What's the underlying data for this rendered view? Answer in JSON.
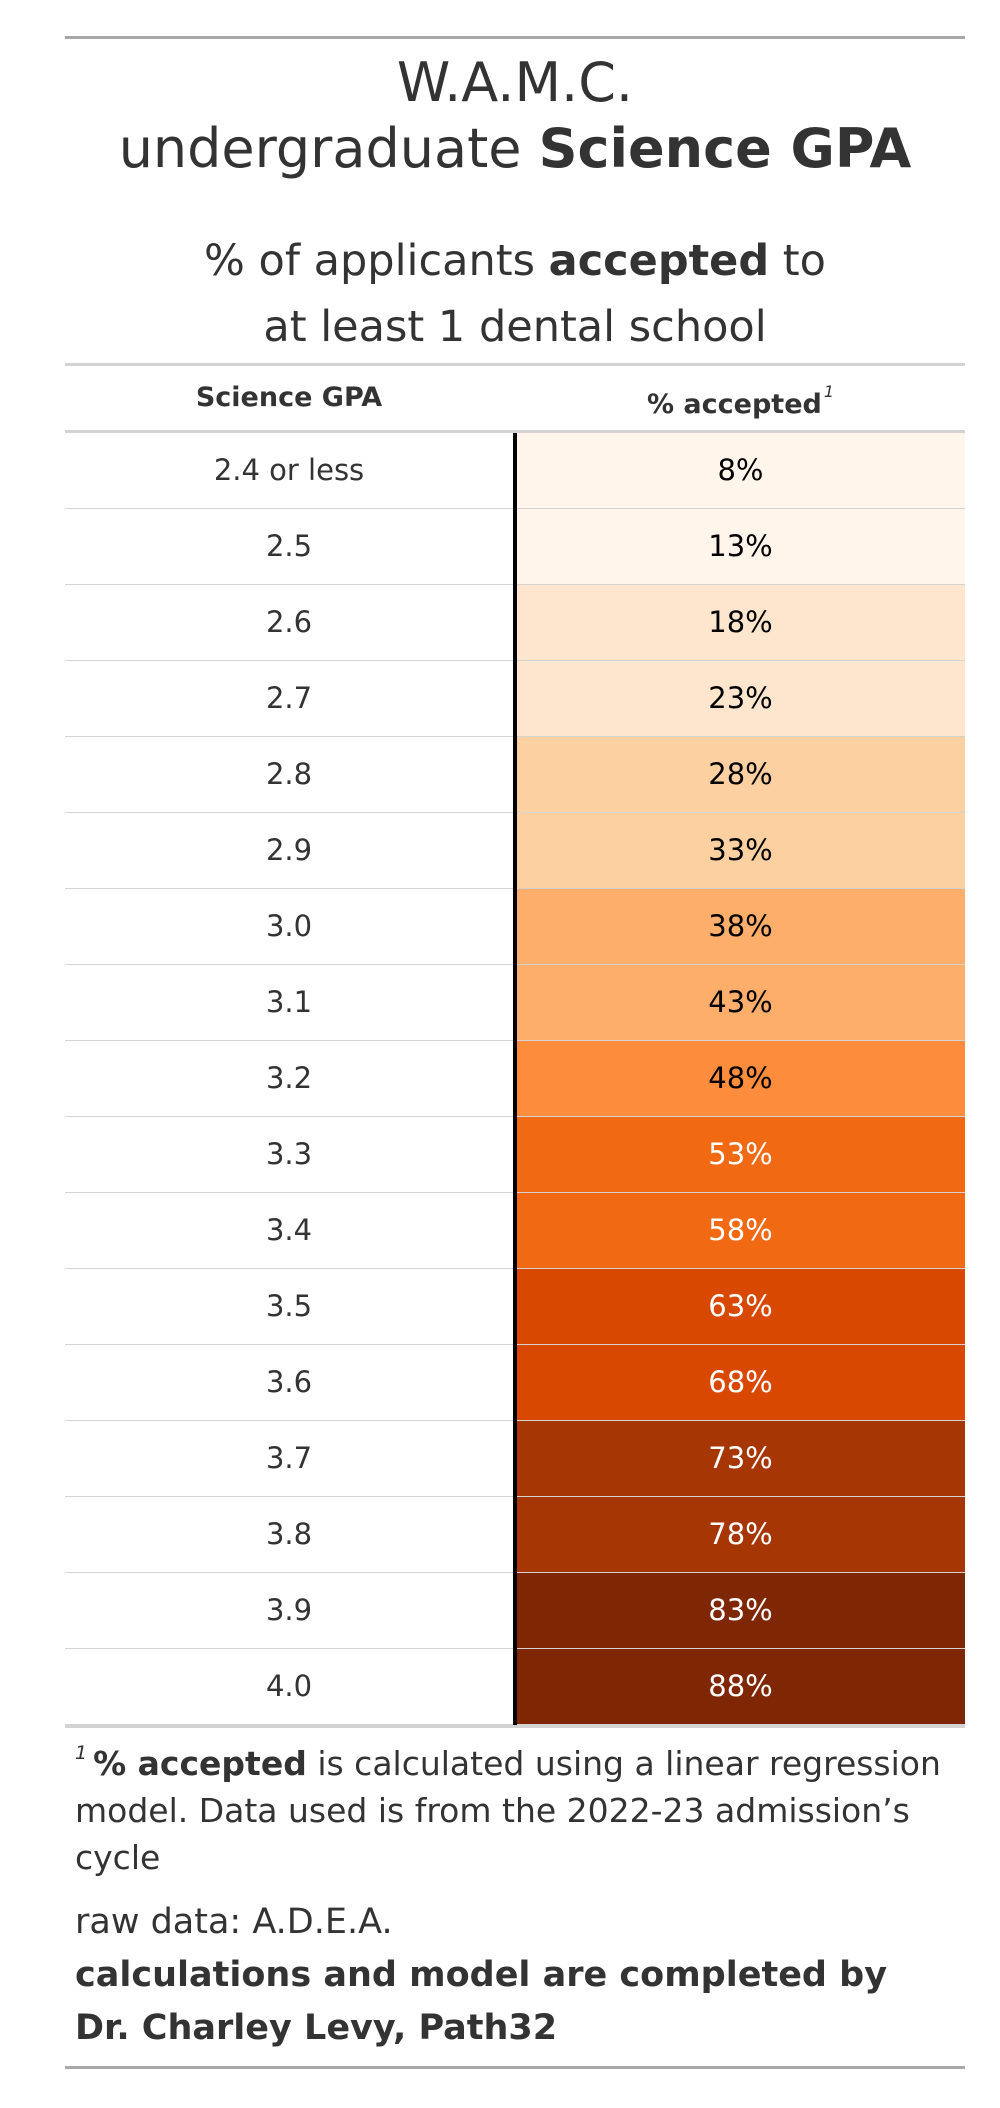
{
  "header": {
    "title_line1": "W.A.M.C.",
    "title_line2_plain": "undergraduate ",
    "title_line2_bold": "Science GPA",
    "subtitle_line1_plain": "% of applicants ",
    "subtitle_line1_bold": "accepted",
    "subtitle_line1_tail": " to",
    "subtitle_line2": "at least 1 dental school"
  },
  "columns": {
    "gpa": "Science GPA",
    "accepted": "% accepted",
    "accepted_footnote_mark": "1"
  },
  "colors": {
    "text_dark": "#000000",
    "text_light": "#ffffff",
    "scale": [
      "#fff5eb",
      "#fee6ce",
      "#fdd0a2",
      "#fdae6b",
      "#fd8d3c",
      "#f16913",
      "#d94801",
      "#a63603",
      "#7f2704"
    ]
  },
  "chart_data": {
    "type": "table",
    "columns": [
      "Science GPA",
      "% accepted"
    ],
    "rows": [
      {
        "gpa": "2.4 or less",
        "accepted": "8%",
        "value": 8
      },
      {
        "gpa": "2.5",
        "accepted": "13%",
        "value": 13
      },
      {
        "gpa": "2.6",
        "accepted": "18%",
        "value": 18
      },
      {
        "gpa": "2.7",
        "accepted": "23%",
        "value": 23
      },
      {
        "gpa": "2.8",
        "accepted": "28%",
        "value": 28
      },
      {
        "gpa": "2.9",
        "accepted": "33%",
        "value": 33
      },
      {
        "gpa": "3.0",
        "accepted": "38%",
        "value": 38
      },
      {
        "gpa": "3.1",
        "accepted": "43%",
        "value": 43
      },
      {
        "gpa": "3.2",
        "accepted": "48%",
        "value": 48
      },
      {
        "gpa": "3.3",
        "accepted": "53%",
        "value": 53
      },
      {
        "gpa": "3.4",
        "accepted": "58%",
        "value": 58
      },
      {
        "gpa": "3.5",
        "accepted": "63%",
        "value": 63
      },
      {
        "gpa": "3.6",
        "accepted": "68%",
        "value": 68
      },
      {
        "gpa": "3.7",
        "accepted": "73%",
        "value": 73
      },
      {
        "gpa": "3.8",
        "accepted": "78%",
        "value": 78
      },
      {
        "gpa": "3.9",
        "accepted": "83%",
        "value": 83
      },
      {
        "gpa": "4.0",
        "accepted": "88%",
        "value": 88
      }
    ]
  },
  "footnote": {
    "mark": "1",
    "bold": "% accepted",
    "text": " is calculated using a linear regression model. Data used is from the 2022-23 admission’s cycle"
  },
  "source": {
    "raw": "raw data: A.D.E.A.",
    "credit_line1": "calculations and model are completed by",
    "credit_line2": "Dr. Charley Levy, Path32"
  }
}
